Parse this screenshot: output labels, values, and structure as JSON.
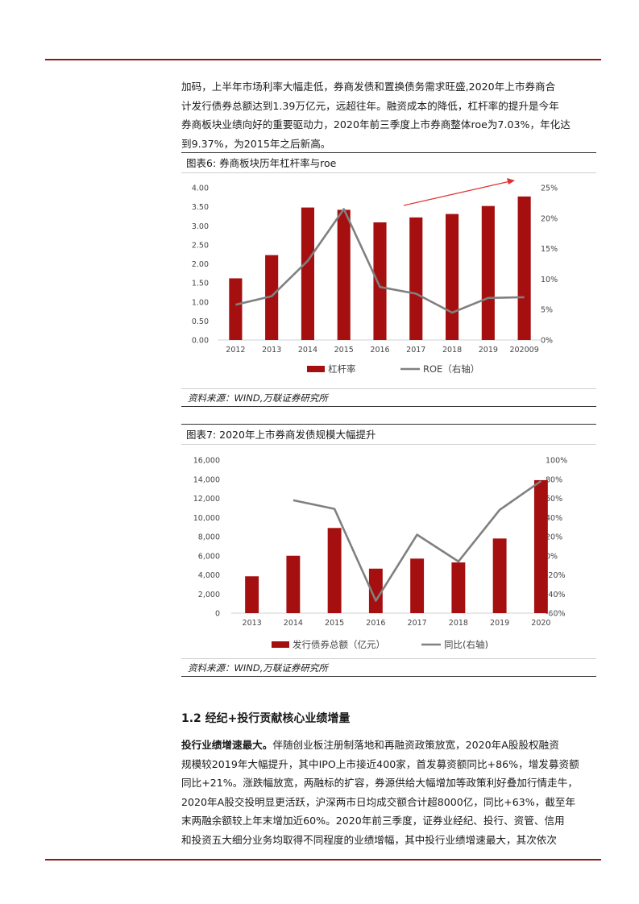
{
  "intro": {
    "lines": [
      "加码，上半年市场利率大幅走低，券商发债和置换债务需求旺盛,2020年上市券商合",
      "计发行债券总额达到1.39万亿元，远超往年。融资成本的降低，杠杆率的提升是今年",
      "券商板块业绩向好的重要驱动力，2020年前三季度上市券商整体roe为7.03%，年化达",
      "到9.37%，为2015年之后新高。"
    ]
  },
  "figure6": {
    "caption": "图表6: 券商板块历年杠杆率与roe",
    "source": "资料来源：WIND,万联证券研究所"
  },
  "figure7": {
    "caption": "图表7: 2020年上市券商发债规模大幅提升",
    "source": "资料来源：WIND,万联证券研究所"
  },
  "section": {
    "title": "1.2 经纪+投行贡献核心业绩增量"
  },
  "body": {
    "lead": "投行业绩增速最大。",
    "lines": [
      "伴随创业板注册制落地和再融资政策放宽，2020年A股股权融资",
      "规模较2019年大幅提升，其中IPO上市接近400家，首发募资额同比+86%，增发募资额",
      "同比+21%。涨跌幅放宽，两融标的扩容，券源供给大幅增加等政策利好叠加行情走牛，",
      "2020年A股交投明显更活跃，沪深两市日均成交额合计超8000亿，同比+63%，截至年",
      "末两融余额较上年末增加近60%。2020年前三季度，证券业经纪、投行、资管、信用",
      "和投资五大细分业务均取得不同程度的业绩增幅，其中投行业绩增速最大，其次依次"
    ]
  },
  "colors": {
    "accent": "#8b1a1a",
    "bar": "#a50f0f",
    "line": "#808080",
    "arrow": "#e03030"
  },
  "chart_data": [
    {
      "type": "bar",
      "categories": [
        "2012",
        "2013",
        "2014",
        "2015",
        "2016",
        "2017",
        "2018",
        "2019",
        "202009"
      ],
      "series": [
        {
          "name": "杠杆率",
          "type": "bar",
          "axis": "left",
          "values": [
            1.62,
            2.23,
            3.48,
            3.42,
            3.09,
            3.22,
            3.31,
            3.52,
            3.77
          ]
        },
        {
          "name": "ROE（右轴）",
          "type": "line",
          "axis": "right",
          "values": [
            5.8,
            7.2,
            13.0,
            21.5,
            8.7,
            7.6,
            4.5,
            6.9,
            7.03
          ]
        }
      ],
      "ylim": [
        0,
        4
      ],
      "yticks": [
        "0.00",
        "0.50",
        "1.00",
        "1.50",
        "2.00",
        "2.50",
        "3.00",
        "3.50",
        "4.00"
      ],
      "y2lim": [
        0,
        25
      ],
      "y2ticks": [
        "0%",
        "5%",
        "10%",
        "15%",
        "20%",
        "25%"
      ],
      "annotation": "upward trend arrow",
      "legend": "bottom",
      "grid": false
    },
    {
      "type": "bar",
      "categories": [
        "2013",
        "2014",
        "2015",
        "2016",
        "2017",
        "2018",
        "2019",
        "2020"
      ],
      "series": [
        {
          "name": "发行债券总额（亿元）",
          "type": "bar",
          "axis": "left",
          "values": [
            3850,
            6000,
            8900,
            4650,
            5700,
            5300,
            7800,
            13900
          ]
        },
        {
          "name": "同比(右轴)",
          "type": "line",
          "axis": "right",
          "values": [
            null,
            58,
            49,
            -47,
            22,
            -6,
            48,
            78
          ]
        }
      ],
      "ylim": [
        0,
        16000
      ],
      "yticks": [
        "0",
        "2,000",
        "4,000",
        "6,000",
        "8,000",
        "10,000",
        "12,000",
        "14,000",
        "16,000"
      ],
      "y2lim": [
        -60,
        100
      ],
      "y2ticks": [
        "-60%",
        "-40%",
        "-20%",
        "0%",
        "20%",
        "40%",
        "60%",
        "80%",
        "100%"
      ],
      "legend": "bottom",
      "grid": false
    }
  ]
}
